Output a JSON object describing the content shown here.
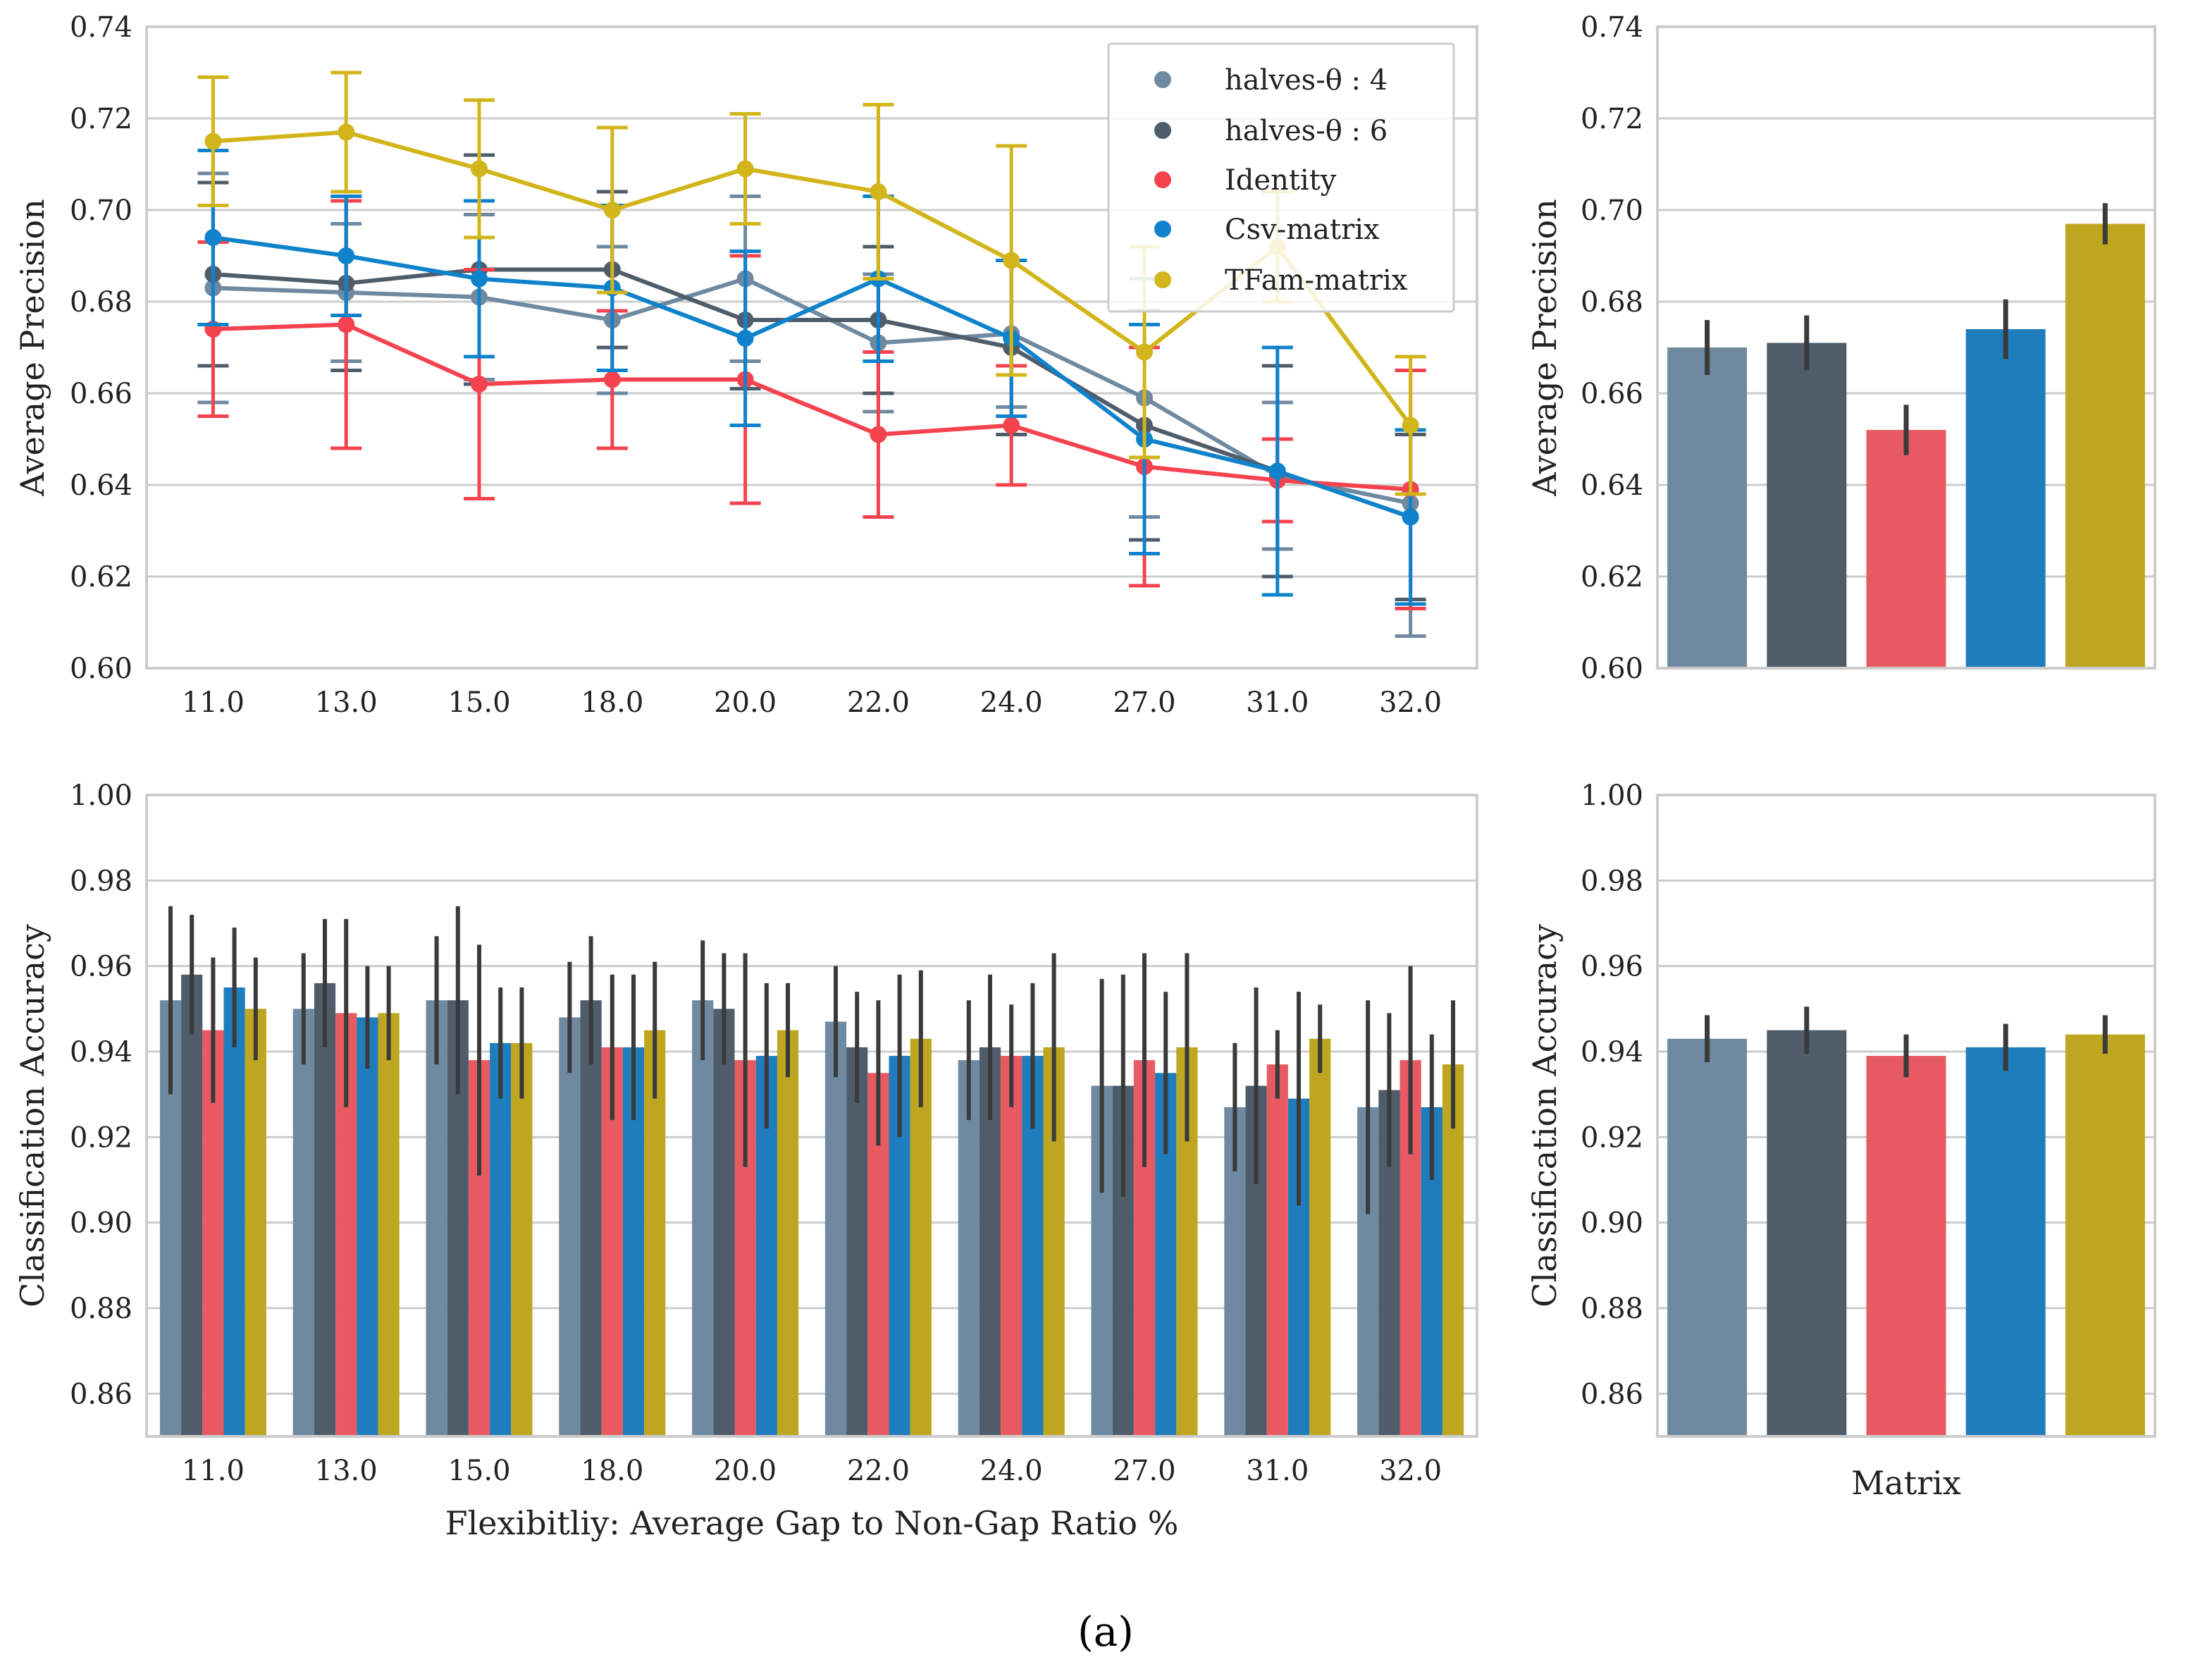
{
  "colors": {
    "halves4": "#6f8aa0",
    "halves6": "#4f5d6b",
    "identity": "#f4434f",
    "csv": "#0f82cc",
    "tfam": "#d2b51a",
    "identity_bar": "#e85a62",
    "csv_bar": "#1f7cbd",
    "tfam_bar": "#bea620"
  },
  "caption": "(a)",
  "chart_data": [
    {
      "id": "ap_line",
      "type": "line",
      "title": "",
      "xlabel": "",
      "ylabel": "Average Precision",
      "ylim": [
        0.6,
        0.74
      ],
      "yticks": [
        "0.60",
        "0.62",
        "0.64",
        "0.66",
        "0.68",
        "0.70",
        "0.72",
        "0.74"
      ],
      "categories": [
        "11.0",
        "13.0",
        "15.0",
        "18.0",
        "20.0",
        "22.0",
        "24.0",
        "27.0",
        "31.0",
        "32.0"
      ],
      "legend_position": "top-right",
      "series": [
        {
          "name": "halves-θ : 4",
          "color_key": "halves4",
          "values": [
            0.683,
            0.682,
            0.681,
            0.676,
            0.685,
            0.671,
            0.673,
            0.659,
            0.642,
            0.636
          ],
          "err": [
            0.025,
            0.015,
            0.018,
            0.016,
            0.018,
            0.015,
            0.016,
            0.026,
            0.016,
            0.029
          ]
        },
        {
          "name": "halves-θ : 6",
          "color_key": "halves6",
          "values": [
            0.686,
            0.684,
            0.687,
            0.687,
            0.676,
            0.676,
            0.67,
            0.653,
            0.643,
            0.633
          ],
          "err": [
            0.02,
            0.019,
            0.025,
            0.017,
            0.015,
            0.016,
            0.019,
            0.025,
            0.023,
            0.018
          ]
        },
        {
          "name": "Identity",
          "color_key": "identity",
          "values": [
            0.674,
            0.675,
            0.662,
            0.663,
            0.663,
            0.651,
            0.653,
            0.644,
            0.641,
            0.639
          ],
          "err": [
            0.019,
            0.027,
            0.025,
            0.015,
            0.027,
            0.018,
            0.013,
            0.026,
            0.009,
            0.026
          ]
        },
        {
          "name": "Csv-matrix",
          "color_key": "csv",
          "values": [
            0.694,
            0.69,
            0.685,
            0.683,
            0.672,
            0.685,
            0.672,
            0.65,
            0.643,
            0.633
          ],
          "err": [
            0.019,
            0.013,
            0.017,
            0.018,
            0.019,
            0.018,
            0.017,
            0.025,
            0.027,
            0.019
          ]
        },
        {
          "name": "TFam-matrix",
          "color_key": "tfam",
          "values": [
            0.715,
            0.717,
            0.709,
            0.7,
            0.709,
            0.704,
            0.689,
            0.669,
            0.692,
            0.653
          ],
          "err": [
            0.014,
            0.013,
            0.015,
            0.018,
            0.012,
            0.019,
            0.025,
            0.023,
            0.012,
            0.015
          ]
        }
      ]
    },
    {
      "id": "ap_bar",
      "type": "bar",
      "ylabel": "Average Precision",
      "ylim": [
        0.6,
        0.74
      ],
      "yticks": [
        "0.60",
        "0.62",
        "0.64",
        "0.66",
        "0.68",
        "0.70",
        "0.72",
        "0.74"
      ],
      "categories": [
        "halves-θ : 4",
        "halves-θ : 6",
        "Identity",
        "Csv-matrix",
        "TFam-matrix"
      ],
      "color_keys": [
        "halves4",
        "halves6",
        "identity_bar",
        "csv_bar",
        "tfam_bar"
      ],
      "values": [
        0.67,
        0.671,
        0.652,
        0.674,
        0.697
      ],
      "err": [
        0.006,
        0.006,
        0.0055,
        0.0065,
        0.0045
      ]
    },
    {
      "id": "ca_bar_group",
      "type": "bar",
      "xlabel": "Flexibitliy: Average Gap to Non-Gap Ratio %",
      "ylabel": "Classification Accuracy",
      "ylim": [
        0.85,
        1.0
      ],
      "yticks": [
        "0.86",
        "0.88",
        "0.90",
        "0.92",
        "0.94",
        "0.96",
        "0.98",
        "1.00"
      ],
      "categories": [
        "11.0",
        "13.0",
        "15.0",
        "18.0",
        "20.0",
        "22.0",
        "24.0",
        "27.0",
        "31.0",
        "32.0"
      ],
      "series": [
        {
          "name": "halves-θ : 4",
          "color_key": "halves4",
          "values": [
            0.952,
            0.95,
            0.952,
            0.948,
            0.952,
            0.947,
            0.938,
            0.932,
            0.927,
            0.927
          ],
          "err": [
            0.022,
            0.013,
            0.015,
            0.013,
            0.014,
            0.013,
            0.014,
            0.025,
            0.015,
            0.025
          ]
        },
        {
          "name": "halves-θ : 6",
          "color_key": "halves6",
          "values": [
            0.958,
            0.956,
            0.952,
            0.952,
            0.95,
            0.941,
            0.941,
            0.932,
            0.932,
            0.931
          ],
          "err": [
            0.014,
            0.015,
            0.022,
            0.015,
            0.013,
            0.013,
            0.017,
            0.026,
            0.023,
            0.018
          ]
        },
        {
          "name": "Identity",
          "color_key": "identity_bar",
          "values": [
            0.945,
            0.949,
            0.938,
            0.941,
            0.938,
            0.935,
            0.939,
            0.938,
            0.937,
            0.938
          ],
          "err": [
            0.017,
            0.022,
            0.027,
            0.017,
            0.025,
            0.017,
            0.012,
            0.025,
            0.008,
            0.022
          ]
        },
        {
          "name": "Csv-matrix",
          "color_key": "csv_bar",
          "values": [
            0.955,
            0.948,
            0.942,
            0.941,
            0.939,
            0.939,
            0.939,
            0.935,
            0.929,
            0.927
          ],
          "err": [
            0.014,
            0.012,
            0.013,
            0.017,
            0.017,
            0.019,
            0.017,
            0.019,
            0.025,
            0.017
          ]
        },
        {
          "name": "TFam-matrix",
          "color_key": "tfam_bar",
          "values": [
            0.95,
            0.949,
            0.942,
            0.945,
            0.945,
            0.943,
            0.941,
            0.941,
            0.943,
            0.937
          ],
          "err": [
            0.012,
            0.011,
            0.013,
            0.016,
            0.011,
            0.016,
            0.022,
            0.022,
            0.008,
            0.015
          ]
        }
      ]
    },
    {
      "id": "ca_bar",
      "type": "bar",
      "xlabel": "Matrix",
      "ylabel": "Classification Accuracy",
      "ylim": [
        0.85,
        1.0
      ],
      "yticks": [
        "0.86",
        "0.88",
        "0.90",
        "0.92",
        "0.94",
        "0.96",
        "0.98",
        "1.00"
      ],
      "categories": [
        "halves-θ : 4",
        "halves-θ : 6",
        "Identity",
        "Csv-matrix",
        "TFam-matrix"
      ],
      "color_keys": [
        "halves4",
        "halves6",
        "identity_bar",
        "csv_bar",
        "tfam_bar"
      ],
      "values": [
        0.943,
        0.945,
        0.939,
        0.941,
        0.944
      ],
      "err": [
        0.0055,
        0.0055,
        0.005,
        0.0055,
        0.0045
      ]
    }
  ]
}
